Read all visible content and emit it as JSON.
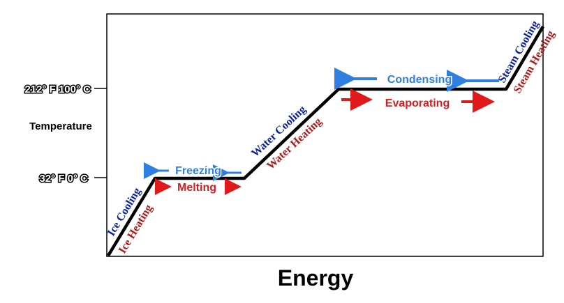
{
  "colors": {
    "curve": "#000000",
    "blue_arrow": "#2f7fe0",
    "red_arrow": "#e01a1a",
    "cooling_text": "#0b1f9c",
    "heating_text": "#b01818"
  },
  "axis": {
    "x_label": "Energy",
    "y_label": "Temperature",
    "tick_upper": "212° F  100° C",
    "tick_lower": "32° F  0° C"
  },
  "slopes": {
    "ice_cooling": "Ice Cooling",
    "ice_heating": "Ice Heating",
    "water_cooling": "Water Cooling",
    "water_heating": "Water Heating",
    "steam_cooling": "Steam Cooling",
    "steam_heating": "Steam Heating"
  },
  "plateaus": {
    "freezing": "Freezing",
    "melting": "Melting",
    "condensing": "Condensing",
    "evaporating": "Evaporating"
  }
}
